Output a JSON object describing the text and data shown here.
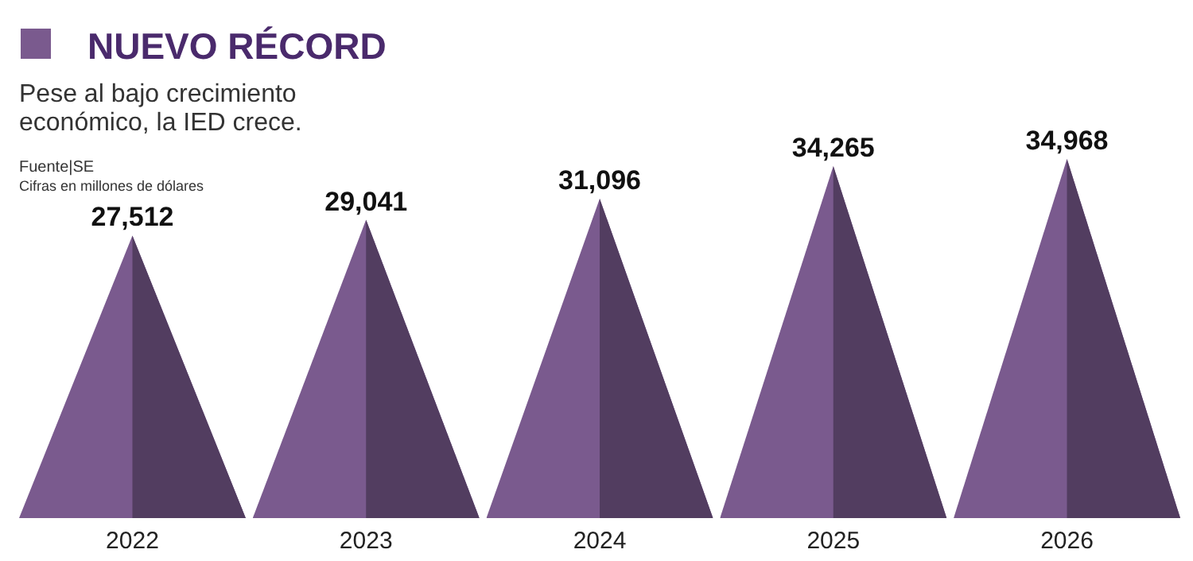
{
  "chart_data": {
    "type": "bar",
    "title": "NUEVO RÉCORD",
    "subtitle": "Pese al bajo crecimiento económico, la IED crece.",
    "annotations": [
      "Fuente|SE",
      "Cifras en millones de dólares"
    ],
    "categories": [
      "2022",
      "2023",
      "2024",
      "2025",
      "2026"
    ],
    "values": [
      27512,
      29041,
      31096,
      34265,
      34968
    ],
    "value_labels": [
      "27,512",
      "29,041",
      "31,096",
      "34,265",
      "34,968"
    ],
    "color": "#7a5a8e",
    "tick_labels": "x"
  }
}
